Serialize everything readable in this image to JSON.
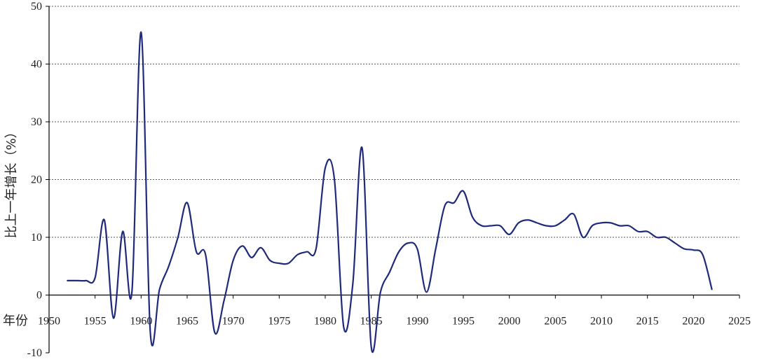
{
  "chart_data": {
    "type": "line",
    "xlabel": "年份",
    "ylabel": "比上一年增长（%）",
    "xlim": [
      1950,
      2025
    ],
    "ylim": [
      -10,
      50
    ],
    "x_ticks": [
      1950,
      1955,
      1960,
      1965,
      1970,
      1975,
      1980,
      1985,
      1990,
      1995,
      2000,
      2005,
      2010,
      2015,
      2020,
      2025
    ],
    "y_ticks": [
      -10,
      0,
      10,
      20,
      30,
      40,
      50
    ],
    "grid": "horizontal-dotted",
    "series_color": "#1f2a7a",
    "series": [
      {
        "x": [
          1952,
          1953,
          1954,
          1955,
          1956,
          1957,
          1958,
          1959,
          1960,
          1961,
          1962,
          1963,
          1964,
          1965,
          1966,
          1967,
          1968,
          1969,
          1970,
          1971,
          1972,
          1973,
          1974,
          1975,
          1976,
          1977,
          1978,
          1979,
          1980,
          1981,
          1982,
          1983,
          1984,
          1985,
          1986,
          1987,
          1988,
          1989,
          1990,
          1991,
          1992,
          1993,
          1994,
          1995,
          1996,
          1997,
          1998,
          1999,
          2000,
          2001,
          2002,
          2003,
          2004,
          2005,
          2006,
          2007,
          2008,
          2009,
          2010,
          2011,
          2012,
          2013,
          2014,
          2015,
          2016,
          2017,
          2018,
          2019,
          2020,
          2021,
          2022
        ],
        "y": [
          2.5,
          2.5,
          2.5,
          3.0,
          13.0,
          -4.0,
          11.0,
          0.5,
          45.5,
          -6.5,
          1.0,
          5.0,
          10.0,
          16.0,
          7.5,
          7.0,
          -6.5,
          -1.0,
          6.0,
          8.5,
          6.5,
          8.2,
          6.0,
          5.5,
          5.5,
          7.0,
          7.5,
          8.0,
          22.0,
          20.0,
          -5.5,
          2.0,
          25.5,
          -9.0,
          0.5,
          4.0,
          7.5,
          9.0,
          8.0,
          0.5,
          8.0,
          15.5,
          16.0,
          18.0,
          13.5,
          12.0,
          12.0,
          12.0,
          10.5,
          12.5,
          13.0,
          12.5,
          12.0,
          12.0,
          13.0,
          14.0,
          10.0,
          12.0,
          12.5,
          12.5,
          12.0,
          12.0,
          11.0,
          11.0,
          10.0,
          10.0,
          9.0,
          8.0,
          7.8,
          7.0,
          1.0
        ]
      }
    ]
  }
}
